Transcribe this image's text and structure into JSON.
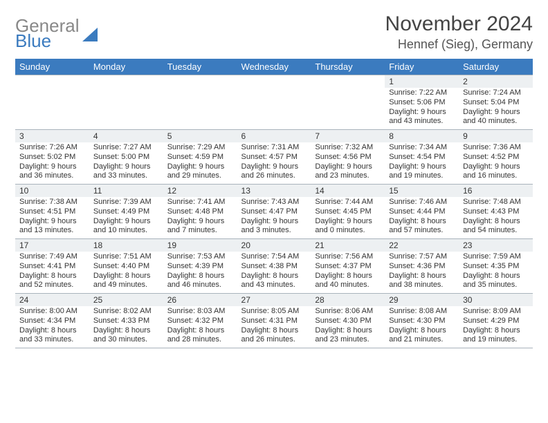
{
  "brand": {
    "line1": "General",
    "line2": "Blue"
  },
  "title": "November 2024",
  "location": "Hennef (Sieg), Germany",
  "colors": {
    "header_bg": "#3b7bbf",
    "header_text": "#ffffff",
    "daynum_bg": "#edf0f2",
    "border": "#a9b3bc",
    "body_text": "#333333",
    "title_text": "#444444",
    "brand_gray": "#888888",
    "brand_blue": "#3b7bbf",
    "page_bg": "#ffffff"
  },
  "typography": {
    "title_fontsize": 30,
    "location_fontsize": 18,
    "header_fontsize": 13,
    "daynum_fontsize": 12,
    "body_fontsize": 11
  },
  "columns": [
    "Sunday",
    "Monday",
    "Tuesday",
    "Wednesday",
    "Thursday",
    "Friday",
    "Saturday"
  ],
  "weeks": [
    [
      {
        "n": "",
        "sr": "",
        "ss": "",
        "dl": ""
      },
      {
        "n": "",
        "sr": "",
        "ss": "",
        "dl": ""
      },
      {
        "n": "",
        "sr": "",
        "ss": "",
        "dl": ""
      },
      {
        "n": "",
        "sr": "",
        "ss": "",
        "dl": ""
      },
      {
        "n": "",
        "sr": "",
        "ss": "",
        "dl": ""
      },
      {
        "n": "1",
        "sr": "Sunrise: 7:22 AM",
        "ss": "Sunset: 5:06 PM",
        "dl": "Daylight: 9 hours and 43 minutes."
      },
      {
        "n": "2",
        "sr": "Sunrise: 7:24 AM",
        "ss": "Sunset: 5:04 PM",
        "dl": "Daylight: 9 hours and 40 minutes."
      }
    ],
    [
      {
        "n": "3",
        "sr": "Sunrise: 7:26 AM",
        "ss": "Sunset: 5:02 PM",
        "dl": "Daylight: 9 hours and 36 minutes."
      },
      {
        "n": "4",
        "sr": "Sunrise: 7:27 AM",
        "ss": "Sunset: 5:00 PM",
        "dl": "Daylight: 9 hours and 33 minutes."
      },
      {
        "n": "5",
        "sr": "Sunrise: 7:29 AM",
        "ss": "Sunset: 4:59 PM",
        "dl": "Daylight: 9 hours and 29 minutes."
      },
      {
        "n": "6",
        "sr": "Sunrise: 7:31 AM",
        "ss": "Sunset: 4:57 PM",
        "dl": "Daylight: 9 hours and 26 minutes."
      },
      {
        "n": "7",
        "sr": "Sunrise: 7:32 AM",
        "ss": "Sunset: 4:56 PM",
        "dl": "Daylight: 9 hours and 23 minutes."
      },
      {
        "n": "8",
        "sr": "Sunrise: 7:34 AM",
        "ss": "Sunset: 4:54 PM",
        "dl": "Daylight: 9 hours and 19 minutes."
      },
      {
        "n": "9",
        "sr": "Sunrise: 7:36 AM",
        "ss": "Sunset: 4:52 PM",
        "dl": "Daylight: 9 hours and 16 minutes."
      }
    ],
    [
      {
        "n": "10",
        "sr": "Sunrise: 7:38 AM",
        "ss": "Sunset: 4:51 PM",
        "dl": "Daylight: 9 hours and 13 minutes."
      },
      {
        "n": "11",
        "sr": "Sunrise: 7:39 AM",
        "ss": "Sunset: 4:49 PM",
        "dl": "Daylight: 9 hours and 10 minutes."
      },
      {
        "n": "12",
        "sr": "Sunrise: 7:41 AM",
        "ss": "Sunset: 4:48 PM",
        "dl": "Daylight: 9 hours and 7 minutes."
      },
      {
        "n": "13",
        "sr": "Sunrise: 7:43 AM",
        "ss": "Sunset: 4:47 PM",
        "dl": "Daylight: 9 hours and 3 minutes."
      },
      {
        "n": "14",
        "sr": "Sunrise: 7:44 AM",
        "ss": "Sunset: 4:45 PM",
        "dl": "Daylight: 9 hours and 0 minutes."
      },
      {
        "n": "15",
        "sr": "Sunrise: 7:46 AM",
        "ss": "Sunset: 4:44 PM",
        "dl": "Daylight: 8 hours and 57 minutes."
      },
      {
        "n": "16",
        "sr": "Sunrise: 7:48 AM",
        "ss": "Sunset: 4:43 PM",
        "dl": "Daylight: 8 hours and 54 minutes."
      }
    ],
    [
      {
        "n": "17",
        "sr": "Sunrise: 7:49 AM",
        "ss": "Sunset: 4:41 PM",
        "dl": "Daylight: 8 hours and 52 minutes."
      },
      {
        "n": "18",
        "sr": "Sunrise: 7:51 AM",
        "ss": "Sunset: 4:40 PM",
        "dl": "Daylight: 8 hours and 49 minutes."
      },
      {
        "n": "19",
        "sr": "Sunrise: 7:53 AM",
        "ss": "Sunset: 4:39 PM",
        "dl": "Daylight: 8 hours and 46 minutes."
      },
      {
        "n": "20",
        "sr": "Sunrise: 7:54 AM",
        "ss": "Sunset: 4:38 PM",
        "dl": "Daylight: 8 hours and 43 minutes."
      },
      {
        "n": "21",
        "sr": "Sunrise: 7:56 AM",
        "ss": "Sunset: 4:37 PM",
        "dl": "Daylight: 8 hours and 40 minutes."
      },
      {
        "n": "22",
        "sr": "Sunrise: 7:57 AM",
        "ss": "Sunset: 4:36 PM",
        "dl": "Daylight: 8 hours and 38 minutes."
      },
      {
        "n": "23",
        "sr": "Sunrise: 7:59 AM",
        "ss": "Sunset: 4:35 PM",
        "dl": "Daylight: 8 hours and 35 minutes."
      }
    ],
    [
      {
        "n": "24",
        "sr": "Sunrise: 8:00 AM",
        "ss": "Sunset: 4:34 PM",
        "dl": "Daylight: 8 hours and 33 minutes."
      },
      {
        "n": "25",
        "sr": "Sunrise: 8:02 AM",
        "ss": "Sunset: 4:33 PM",
        "dl": "Daylight: 8 hours and 30 minutes."
      },
      {
        "n": "26",
        "sr": "Sunrise: 8:03 AM",
        "ss": "Sunset: 4:32 PM",
        "dl": "Daylight: 8 hours and 28 minutes."
      },
      {
        "n": "27",
        "sr": "Sunrise: 8:05 AM",
        "ss": "Sunset: 4:31 PM",
        "dl": "Daylight: 8 hours and 26 minutes."
      },
      {
        "n": "28",
        "sr": "Sunrise: 8:06 AM",
        "ss": "Sunset: 4:30 PM",
        "dl": "Daylight: 8 hours and 23 minutes."
      },
      {
        "n": "29",
        "sr": "Sunrise: 8:08 AM",
        "ss": "Sunset: 4:30 PM",
        "dl": "Daylight: 8 hours and 21 minutes."
      },
      {
        "n": "30",
        "sr": "Sunrise: 8:09 AM",
        "ss": "Sunset: 4:29 PM",
        "dl": "Daylight: 8 hours and 19 minutes."
      }
    ]
  ]
}
